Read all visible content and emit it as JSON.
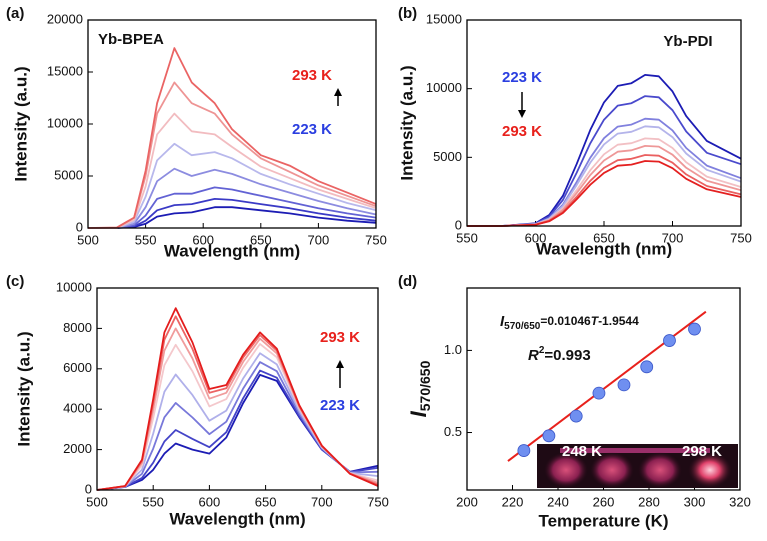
{
  "chart_data": [
    {
      "type": "line",
      "panel": "(a)",
      "xlabel": "Wavelength (nm)",
      "ylabel": "Intensity (a.u.)",
      "xlim": [
        500,
        750
      ],
      "xticks": [
        500,
        550,
        600,
        650,
        700,
        750
      ],
      "ylim": [
        0,
        20000
      ],
      "yticks": [
        0,
        5000,
        10000,
        15000,
        20000
      ],
      "label": {
        "text": "Yb-BPEA"
      },
      "top_label": {
        "text": "293 K",
        "color": "#e8211c"
      },
      "bottom_label": {
        "text": "223 K",
        "color": "#2b3fe0"
      },
      "x": [
        500,
        525,
        540,
        550,
        560,
        575,
        590,
        610,
        625,
        650,
        675,
        700,
        725,
        750
      ],
      "series": [
        {
          "color": "#1c1cb4",
          "values": [
            0,
            0,
            100,
            400,
            1100,
            1400,
            1500,
            2000,
            2000,
            1700,
            1400,
            1000,
            700,
            500
          ]
        },
        {
          "color": "#3a3ac6",
          "values": [
            0,
            0,
            150,
            700,
            1700,
            2200,
            2300,
            2800,
            2700,
            2300,
            1900,
            1400,
            1000,
            700
          ]
        },
        {
          "color": "#6262d4",
          "values": [
            0,
            0,
            250,
            1200,
            2800,
            3300,
            3300,
            3900,
            3700,
            3100,
            2500,
            1900,
            1400,
            1000
          ]
        },
        {
          "color": "#8c8ce0",
          "values": [
            0,
            0,
            400,
            2000,
            4500,
            5700,
            5000,
            5600,
            5200,
            4200,
            3400,
            2600,
            1900,
            1300
          ]
        },
        {
          "color": "#b8b8ec",
          "values": [
            0,
            0,
            600,
            3000,
            6500,
            8100,
            7000,
            7300,
            6700,
            5200,
            4200,
            3300,
            2400,
            1700
          ]
        },
        {
          "color": "#f2bcc0",
          "values": [
            0,
            0,
            800,
            4000,
            9000,
            11000,
            9300,
            9000,
            7800,
            5900,
            4800,
            3700,
            2800,
            1900
          ]
        },
        {
          "color": "#ee9494",
          "values": [
            0,
            0,
            1000,
            5000,
            11000,
            14000,
            12000,
            11000,
            9000,
            6700,
            5400,
            4100,
            3100,
            2100
          ]
        },
        {
          "color": "#ea6464",
          "values": [
            0,
            50,
            1000,
            5500,
            12000,
            17300,
            14000,
            12000,
            9500,
            7000,
            6000,
            4500,
            3400,
            2300
          ]
        }
      ]
    },
    {
      "type": "line",
      "panel": "(b)",
      "xlabel": "Wavelength (nm)",
      "ylabel": "Intensity (a.u.)",
      "xlim": [
        550,
        750
      ],
      "xticks": [
        550,
        600,
        650,
        700,
        750
      ],
      "ylim": [
        0,
        15000
      ],
      "yticks": [
        0,
        5000,
        10000,
        15000
      ],
      "label": {
        "text": "Yb-PDI"
      },
      "top_label": {
        "text": "223 K",
        "color": "#2b3fe0"
      },
      "bottom_label": {
        "text": "293 K",
        "color": "#e8211c"
      },
      "x": [
        550,
        575,
        600,
        610,
        620,
        630,
        640,
        650,
        660,
        670,
        680,
        690,
        700,
        710,
        725,
        750
      ],
      "series": [
        {
          "color": "#1c1cb4",
          "values": [
            0,
            0,
            200,
            800,
            2200,
            4500,
            7000,
            9000,
            10200,
            10400,
            11000,
            10900,
            9800,
            8000,
            6200,
            4900
          ]
        },
        {
          "color": "#4a4acc",
          "values": [
            0,
            0,
            170,
            690,
            1890,
            3870,
            6020,
            7740,
            8770,
            8940,
            9460,
            9370,
            8430,
            6880,
            5330,
            4500
          ]
        },
        {
          "color": "#8080de",
          "values": [
            0,
            0,
            140,
            570,
            1560,
            3200,
            4970,
            6390,
            7240,
            7380,
            7810,
            7740,
            6960,
            5680,
            4400,
            3480
          ]
        },
        {
          "color": "#b4b4ea",
          "values": [
            0,
            0,
            130,
            530,
            1450,
            2970,
            4620,
            5940,
            6730,
            6860,
            7260,
            7190,
            6470,
            5280,
            4090,
            3230
          ]
        },
        {
          "color": "#f2c0c4",
          "values": [
            0,
            0,
            120,
            460,
            1280,
            2610,
            4060,
            5220,
            5920,
            6030,
            6380,
            6320,
            5680,
            4640,
            3600,
            2840
          ]
        },
        {
          "color": "#ee9898",
          "values": [
            0,
            0,
            110,
            420,
            1170,
            2390,
            3710,
            4770,
            5410,
            5510,
            5830,
            5780,
            5190,
            4240,
            3290,
            2600
          ]
        },
        {
          "color": "#ea6060",
          "values": [
            0,
            0,
            90,
            380,
            1030,
            2120,
            3290,
            4230,
            4790,
            4890,
            5170,
            5120,
            4610,
            3760,
            2910,
            2300
          ]
        },
        {
          "color": "#e42020",
          "values": [
            0,
            0,
            90,
            340,
            950,
            1940,
            3010,
            3870,
            4390,
            4470,
            4730,
            4690,
            4210,
            3440,
            2670,
            2110
          ]
        }
      ]
    },
    {
      "type": "line",
      "panel": "(c)",
      "xlabel": "Wavelength (nm)",
      "ylabel": "Intensity (a.u.)",
      "xlim": [
        500,
        750
      ],
      "xticks": [
        500,
        550,
        600,
        650,
        700,
        750
      ],
      "ylim": [
        0,
        10000
      ],
      "yticks": [
        0,
        2000,
        4000,
        6000,
        8000,
        10000
      ],
      "top_label": {
        "text": "293 K",
        "color": "#e8211c"
      },
      "bottom_label": {
        "text": "223 K",
        "color": "#2b3fe0"
      },
      "x": [
        500,
        525,
        540,
        550,
        560,
        570,
        585,
        600,
        615,
        630,
        645,
        660,
        680,
        700,
        725,
        750
      ],
      "series": [
        {
          "color": "#1c1cb4",
          "values": [
            0,
            150,
            500,
            1000,
            1800,
            2300,
            2000,
            1800,
            2600,
            4300,
            5700,
            5400,
            3600,
            2000,
            900,
            1200
          ]
        },
        {
          "color": "#4444c8",
          "values": [
            0,
            155,
            600,
            1350,
            2400,
            2970,
            2530,
            2120,
            2860,
            4540,
            5910,
            5560,
            3660,
            2020,
            890,
            1100
          ]
        },
        {
          "color": "#7878da",
          "values": [
            0,
            165,
            800,
            2050,
            3600,
            4310,
            3590,
            2760,
            3380,
            5020,
            6330,
            5880,
            3780,
            2060,
            870,
            900
          ]
        },
        {
          "color": "#b0b0ea",
          "values": [
            0,
            175,
            1010,
            2790,
            4860,
            5720,
            4700,
            3430,
            3930,
            5520,
            6770,
            6220,
            3910,
            2100,
            850,
            690
          ]
        },
        {
          "color": "#f4c8cc",
          "values": [
            0,
            185,
            1230,
            3560,
            6180,
            7190,
            5870,
            4140,
            4500,
            6050,
            7230,
            6570,
            4040,
            2150,
            830,
            470
          ]
        },
        {
          "color": "#f09c9c",
          "values": [
            0,
            190,
            1350,
            3980,
            6900,
            8000,
            6510,
            4520,
            4810,
            6340,
            7490,
            6760,
            4110,
            2170,
            820,
            350
          ]
        },
        {
          "color": "#ec6464",
          "values": [
            0,
            195,
            1440,
            4290,
            7440,
            8600,
            6980,
            4810,
            5040,
            6560,
            7670,
            6900,
            4160,
            2190,
            810,
            260
          ]
        },
        {
          "color": "#e41c1c",
          "values": [
            0,
            200,
            1500,
            4500,
            7800,
            9000,
            7300,
            5000,
            5200,
            6700,
            7800,
            7000,
            4200,
            2200,
            800,
            200
          ]
        }
      ]
    },
    {
      "type": "scatter",
      "panel": "(d)",
      "xlabel": "Temperature (K)",
      "ylabel": {
        "main": "I",
        "sub": "570/650"
      },
      "xlim": [
        200,
        320
      ],
      "xticks": [
        200,
        220,
        240,
        260,
        280,
        300,
        320
      ],
      "ylim": [
        0.15,
        1.38
      ],
      "yticks": [
        0.5,
        {
          "value": 1,
          "label": "1.0"
        }
      ],
      "equation": [
        "I",
        "570/650",
        "=0.01046",
        "T",
        "-1.9544"
      ],
      "r_squared": [
        "R",
        "2",
        "=0.993"
      ],
      "inset_labels": [
        "248 K",
        "298 K"
      ],
      "color": "#6f8ff0",
      "fit_color": "#e8211c",
      "x": [
        225,
        236,
        248,
        258,
        269,
        279,
        289,
        300
      ],
      "values": [
        0.39,
        0.48,
        0.6,
        0.74,
        0.79,
        0.9,
        1.06,
        1.13
      ],
      "fit_line": {
        "x": [
          218,
          305
        ],
        "values": [
          0.326,
          1.236
        ]
      }
    }
  ]
}
